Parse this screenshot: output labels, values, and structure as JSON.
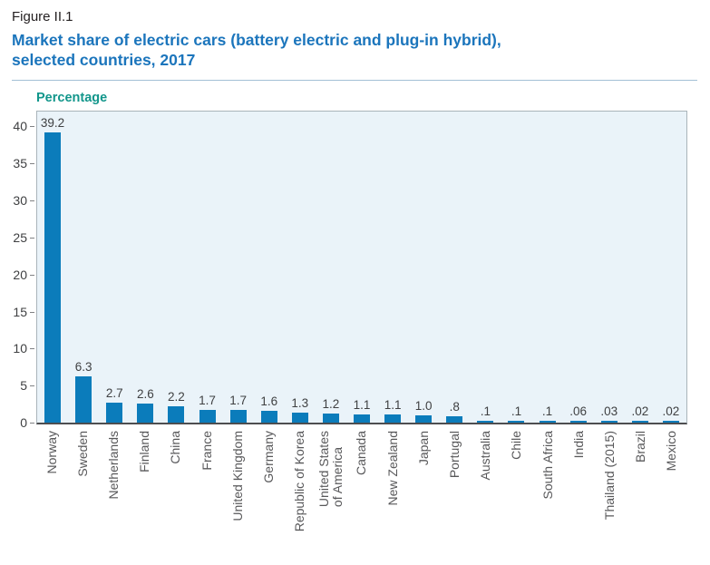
{
  "figure": {
    "label": "Figure II.1",
    "title_line1": "Market share of electric cars (battery electric and plug-in hybrid),",
    "title_line2": "selected countries, 2017"
  },
  "chart_data": {
    "type": "bar",
    "title": "Market share of electric cars (battery electric and plug-in hybrid), selected countries, 2017",
    "xlabel": "",
    "ylabel": "Percentage",
    "categories": [
      "Norway",
      "Sweden",
      "Netherlands",
      "Finland",
      "China",
      "France",
      "United Kingdom",
      "Germany",
      "Republic of Korea",
      "United States\nof America",
      "Canada",
      "New Zealand",
      "Japan",
      "Portugal",
      "Australia",
      "Chile",
      "South Africa",
      "India",
      "Thailand (2015)",
      "Brazil",
      "Mexico"
    ],
    "values": [
      39.2,
      6.3,
      2.7,
      2.6,
      2.2,
      1.7,
      1.7,
      1.6,
      1.3,
      1.2,
      1.1,
      1.1,
      1.0,
      0.8,
      0.1,
      0.1,
      0.1,
      0.06,
      0.03,
      0.02,
      0.02
    ],
    "value_labels": [
      "39.2",
      "6.3",
      "2.7",
      "2.6",
      "2.2",
      "1.7",
      "1.7",
      "1.6",
      "1.3",
      "1.2",
      "1.1",
      "1.1",
      "1.0",
      ".8",
      ".1",
      ".1",
      ".1",
      ".06",
      ".03",
      ".02",
      ".02"
    ],
    "yticks": [
      0,
      5,
      10,
      15,
      20,
      25,
      30,
      35,
      40
    ],
    "ylim": [
      0,
      42
    ],
    "grid": false,
    "legend": null,
    "bar_color": "#0b7cbb",
    "plot_bg": "#eaf3f9",
    "axis_line_color": "#4d4e50"
  },
  "colors": {
    "title_blue": "#1b75bc",
    "axis_title_teal": "#12968b",
    "figure_label": "#231f20",
    "divider": "#a3c0d6",
    "plot_border": "#a9b4ba",
    "tick_text": "#3f4042",
    "xlabel_text": "#58585a",
    "value_label_text": "#3f4042"
  }
}
